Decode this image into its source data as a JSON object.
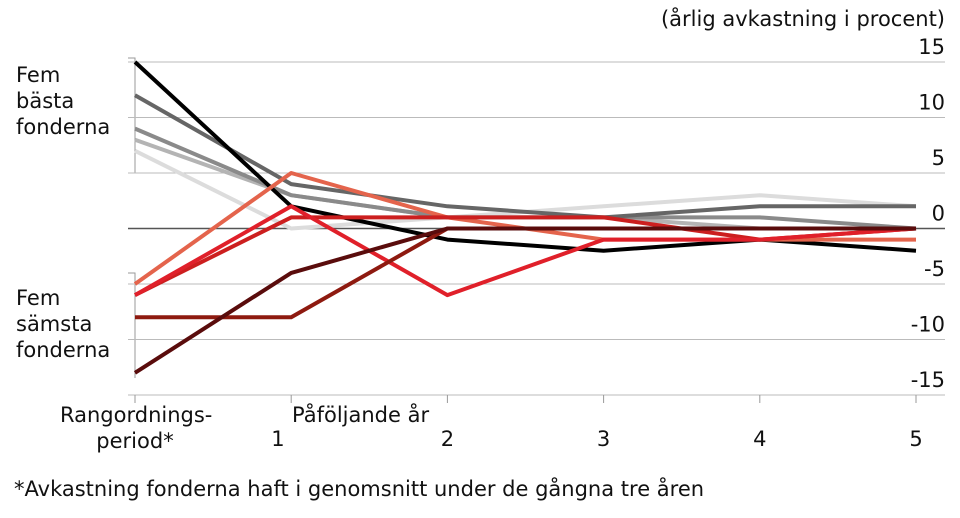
{
  "chart_data": {
    "type": "line",
    "title": "(årlig avkastning i procent)",
    "categories": [
      "Rangordnings-\nperiod*",
      "1",
      "2",
      "3",
      "4",
      "5"
    ],
    "x_annotation": "Påföljande år",
    "group_labels": [
      "Fem\nbästa\nfonderna",
      "Fem\nsämsta\nfonderna"
    ],
    "footnote": "*Avkastning fonderna haft i genomsnitt under de gångna tre åren",
    "ylim": [
      -15,
      15
    ],
    "yticks": [
      -15,
      -10,
      -5,
      0,
      5,
      10,
      15
    ],
    "grid": true,
    "series": [
      {
        "color": "#dcdcdc",
        "values": [
          7,
          0,
          1,
          2,
          3,
          2
        ]
      },
      {
        "color": "#b4b4b4",
        "values": [
          8,
          3,
          1,
          1,
          0,
          0
        ]
      },
      {
        "color": "#8a8a8a",
        "values": [
          9,
          3,
          1,
          1,
          1,
          0
        ]
      },
      {
        "color": "#666666",
        "values": [
          12,
          4,
          2,
          1,
          2,
          2
        ]
      },
      {
        "color": "#000000",
        "values": [
          15,
          2,
          -1,
          -2,
          -1,
          -2
        ]
      },
      {
        "color": "#e4644c",
        "values": [
          -5,
          5,
          1,
          -1,
          -1,
          -1
        ]
      },
      {
        "color": "#cc1f1f",
        "values": [
          -6,
          1,
          1,
          1,
          -1,
          0
        ]
      },
      {
        "color": "#e0202a",
        "values": [
          -6,
          2,
          -6,
          -1,
          -1,
          0
        ]
      },
      {
        "color": "#8e1a10",
        "values": [
          -8,
          -8,
          0,
          0,
          0,
          0
        ]
      },
      {
        "color": "#5a0c0c",
        "values": [
          -13,
          -4,
          0,
          0,
          0,
          0
        ]
      }
    ]
  }
}
